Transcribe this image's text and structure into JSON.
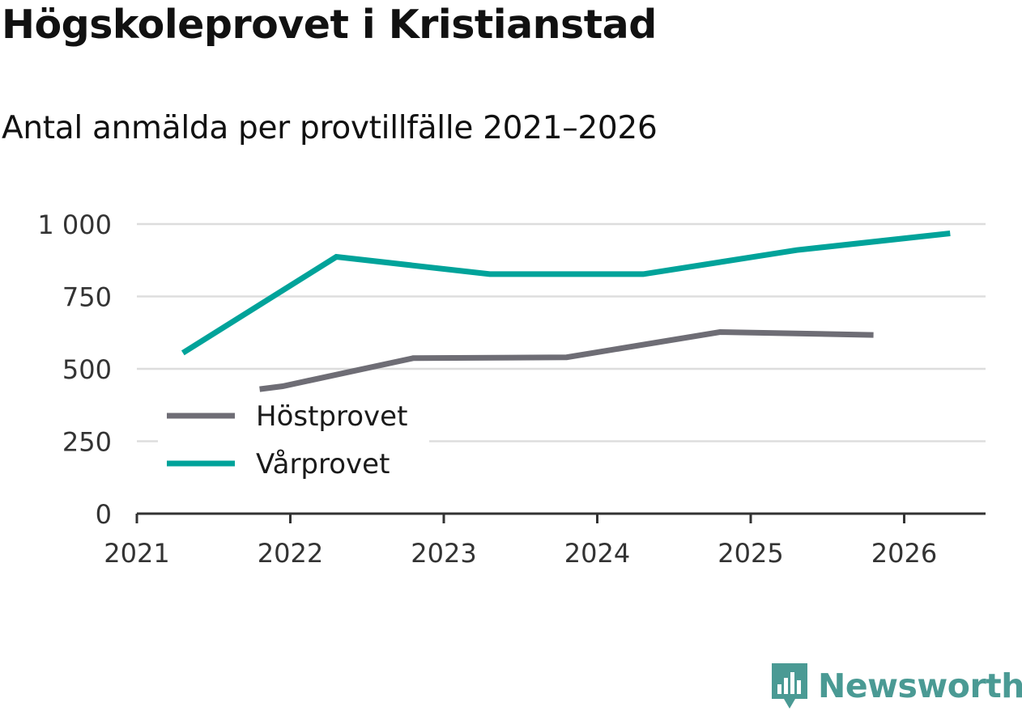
{
  "header": {
    "title": "Högskoleprovet i Kristianstad",
    "subtitle": "Antal anmälda per provtillfälle 2021–2026"
  },
  "colors": {
    "hostprovet": "#6e6d75",
    "varprovet": "#00a39a",
    "grid": "#dddddd",
    "axis": "#333333",
    "brand": "#4a9a94"
  },
  "chart_data": {
    "type": "line",
    "title": "Högskoleprovet i Kristianstad",
    "subtitle": "Antal anmälda per provtillfälle 2021–2026",
    "xlabel": "",
    "ylabel": "",
    "xlim": [
      2021,
      2026.55
    ],
    "ylim": [
      0,
      1000
    ],
    "x_ticks": [
      2021,
      2022,
      2023,
      2024,
      2025,
      2026
    ],
    "x_tick_labels": [
      "2021",
      "2022",
      "2023",
      "2024",
      "2025",
      "2026"
    ],
    "y_ticks": [
      0,
      250,
      500,
      750,
      1000
    ],
    "y_tick_labels": [
      "0",
      "250",
      "500",
      "750",
      "1 000"
    ],
    "grid": true,
    "legend_position": "lower-left",
    "series": [
      {
        "name": "Höstprovet",
        "color_key": "hostprovet",
        "x": [
          2021.8,
          2021.95,
          2022.8,
          2023.8,
          2024.8,
          2025.8
        ],
        "y": [
          430,
          440,
          537,
          540,
          627,
          617
        ]
      },
      {
        "name": "Vårprovet",
        "color_key": "varprovet",
        "x": [
          2021.3,
          2022.3,
          2023.3,
          2024.3,
          2025.3,
          2026.3
        ],
        "y": [
          555,
          887,
          827,
          827,
          910,
          968
        ]
      }
    ]
  },
  "branding": {
    "logo_text": "Newsworthy",
    "logo_icon": "newsworthy-logo-icon"
  }
}
